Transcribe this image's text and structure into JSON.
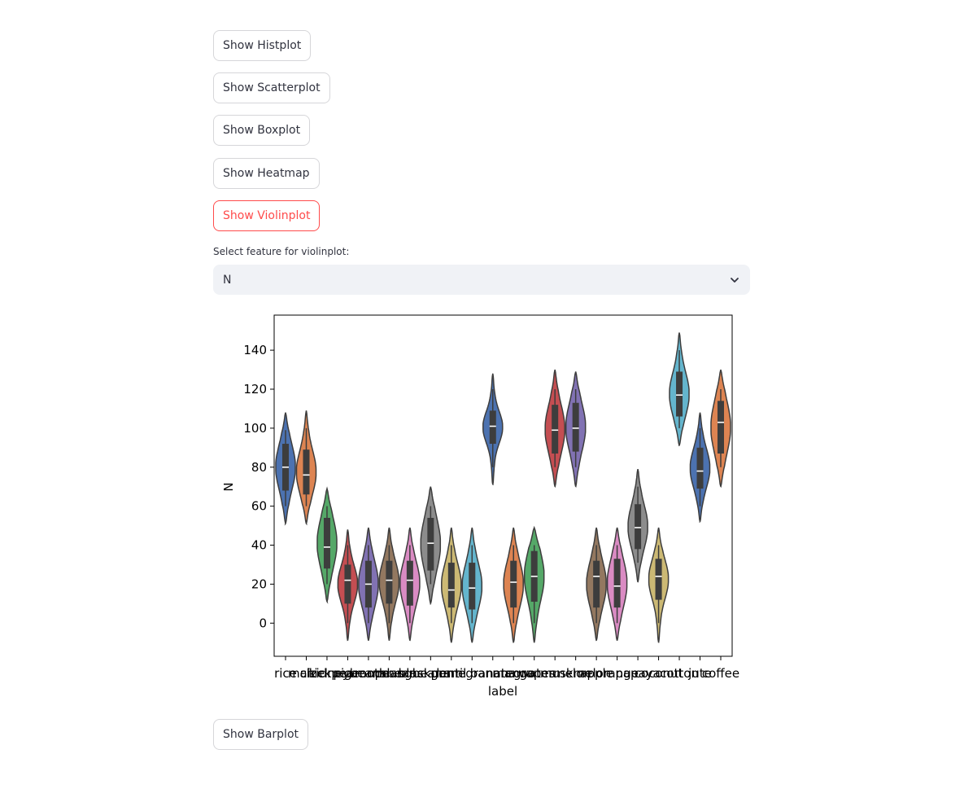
{
  "buttons": {
    "histplot": "Show Histplot",
    "scatterplot": "Show Scatterplot",
    "boxplot": "Show Boxplot",
    "heatmap": "Show Heatmap",
    "violinplot": "Show Violinplot",
    "barplot": "Show Barplot"
  },
  "select": {
    "label": "Select feature for violinplot:",
    "value": "N",
    "icon": "chevron-down-icon"
  },
  "colors": {
    "accent": "#ff4b4b",
    "select_bg": "#f0f2f6"
  },
  "chart_data": {
    "type": "violin",
    "title": "",
    "xlabel": "label",
    "ylabel": "N",
    "ylim": [
      -17,
      158
    ],
    "yticks": [
      0,
      20,
      40,
      60,
      80,
      100,
      120,
      140
    ],
    "grid": false,
    "legend": "none",
    "categories": [
      "rice",
      "maize",
      "chickpea",
      "kidneybeans",
      "pigeonpeas",
      "mothbeans",
      "mungbean",
      "blackgram",
      "lentil",
      "pomegranate",
      "banana",
      "mango",
      "grapes",
      "watermelon",
      "muskmelon",
      "apple",
      "orange",
      "papaya",
      "coconut",
      "cotton",
      "jute",
      "coffee"
    ],
    "series": [
      {
        "category": "rice",
        "color": "#4c72b0",
        "min": 51,
        "q1": 68,
        "median": 80,
        "q3": 92,
        "max": 108,
        "ext_low": 60,
        "ext_high": 99
      },
      {
        "category": "maize",
        "color": "#dd8452",
        "min": 51,
        "q1": 66,
        "median": 76,
        "q3": 89,
        "max": 109,
        "ext_low": 60,
        "ext_high": 100
      },
      {
        "category": "chickpea",
        "color": "#55a868",
        "min": 11,
        "q1": 28,
        "median": 39,
        "q3": 54,
        "max": 69,
        "ext_low": 20,
        "ext_high": 60
      },
      {
        "category": "kidneybeans",
        "color": "#c44e52",
        "min": -9,
        "q1": 10,
        "median": 22,
        "q3": 30,
        "max": 48,
        "ext_low": 0,
        "ext_high": 40
      },
      {
        "category": "pigeonpeas",
        "color": "#8172b3",
        "min": -9,
        "q1": 8,
        "median": 20,
        "q3": 32,
        "max": 49,
        "ext_low": 0,
        "ext_high": 40
      },
      {
        "category": "mothbeans",
        "color": "#937860",
        "min": -9,
        "q1": 10,
        "median": 22,
        "q3": 32,
        "max": 49,
        "ext_low": 0,
        "ext_high": 40
      },
      {
        "category": "mungbean",
        "color": "#da8bc3",
        "min": -9,
        "q1": 9,
        "median": 22,
        "q3": 32,
        "max": 49,
        "ext_low": 0,
        "ext_high": 40
      },
      {
        "category": "blackgram",
        "color": "#8c8c8c",
        "min": 10,
        "q1": 27,
        "median": 41,
        "q3": 54,
        "max": 70,
        "ext_low": 20,
        "ext_high": 60
      },
      {
        "category": "lentil",
        "color": "#ccb974",
        "min": -10,
        "q1": 8,
        "median": 17,
        "q3": 31,
        "max": 49,
        "ext_low": 0,
        "ext_high": 40
      },
      {
        "category": "pomegranate",
        "color": "#64b5cd",
        "min": -10,
        "q1": 7,
        "median": 18,
        "q3": 31,
        "max": 49,
        "ext_low": 0,
        "ext_high": 40
      },
      {
        "category": "banana",
        "color": "#4c72b0",
        "min": 71,
        "q1": 92,
        "median": 101,
        "q3": 109,
        "max": 128,
        "ext_low": 80,
        "ext_high": 120
      },
      {
        "category": "mango",
        "color": "#dd8452",
        "min": -10,
        "q1": 8,
        "median": 21,
        "q3": 32,
        "max": 49,
        "ext_low": 0,
        "ext_high": 40
      },
      {
        "category": "grapes",
        "color": "#55a868",
        "min": -10,
        "q1": 11,
        "median": 24,
        "q3": 37,
        "max": 49,
        "ext_low": 0,
        "ext_high": 40
      },
      {
        "category": "watermelon",
        "color": "#c44e52",
        "min": 70,
        "q1": 87,
        "median": 99,
        "q3": 112,
        "max": 130,
        "ext_low": 80,
        "ext_high": 120
      },
      {
        "category": "muskmelon",
        "color": "#8172b3",
        "min": 70,
        "q1": 88,
        "median": 100,
        "q3": 113,
        "max": 129,
        "ext_low": 80,
        "ext_high": 120
      },
      {
        "category": "apple",
        "color": "#937860",
        "min": -9,
        "q1": 8,
        "median": 24,
        "q3": 32,
        "max": 49,
        "ext_low": 0,
        "ext_high": 40
      },
      {
        "category": "orange",
        "color": "#da8bc3",
        "min": -9,
        "q1": 8,
        "median": 19,
        "q3": 33,
        "max": 49,
        "ext_low": 0,
        "ext_high": 40
      },
      {
        "category": "papaya",
        "color": "#8c8c8c",
        "min": 21,
        "q1": 38,
        "median": 49,
        "q3": 61,
        "max": 79,
        "ext_low": 31,
        "ext_high": 70
      },
      {
        "category": "coconut",
        "color": "#ccb974",
        "min": -10,
        "q1": 12,
        "median": 24,
        "q3": 33,
        "max": 49,
        "ext_low": 0,
        "ext_high": 40
      },
      {
        "category": "cotton",
        "color": "#64b5cd",
        "min": 91,
        "q1": 106,
        "median": 117,
        "q3": 129,
        "max": 149,
        "ext_low": 100,
        "ext_high": 140
      },
      {
        "category": "jute",
        "color": "#4c72b0",
        "min": 52,
        "q1": 69,
        "median": 78,
        "q3": 90,
        "max": 108,
        "ext_low": 60,
        "ext_high": 100
      },
      {
        "category": "coffee",
        "color": "#dd8452",
        "min": 70,
        "q1": 87,
        "median": 103,
        "q3": 114,
        "max": 130,
        "ext_low": 80,
        "ext_high": 120
      }
    ]
  }
}
